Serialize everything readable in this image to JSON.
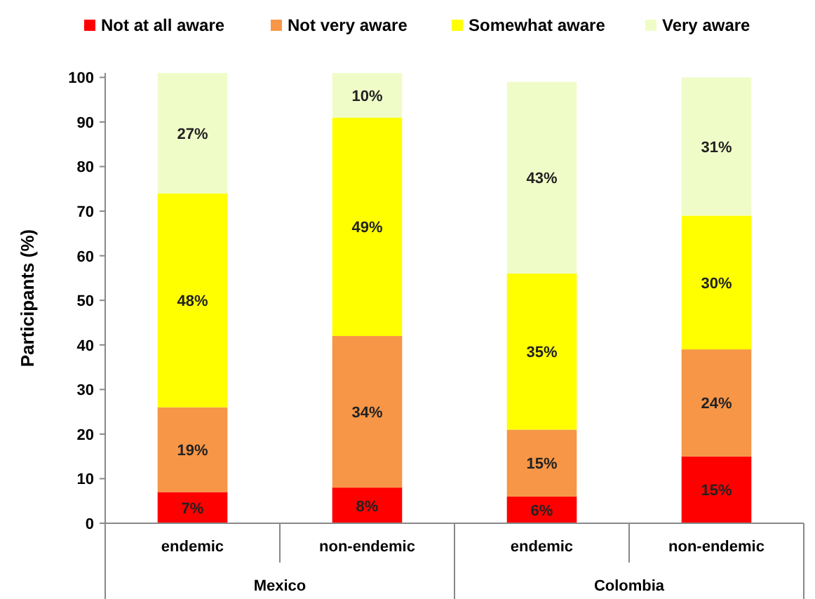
{
  "chart_data": {
    "type": "bar",
    "stacked": true,
    "ylabel": "Participants (%)",
    "categories": [
      "endemic",
      "non-endemic",
      "endemic",
      "non-endemic"
    ],
    "annotations": [
      "Mexico",
      "Colombia"
    ],
    "series": [
      {
        "name": "Not at all aware",
        "color": "#ff0000",
        "values": [
          7,
          8,
          6,
          15
        ],
        "value_labels": [
          "7%",
          "8%",
          "6%",
          "15%"
        ]
      },
      {
        "name": "Not very aware",
        "color": "#f79646",
        "values": [
          19,
          34,
          15,
          24
        ],
        "value_labels": [
          "19%",
          "34%",
          "15%",
          "24%"
        ]
      },
      {
        "name": "Somewhat aware",
        "color": "#ffff00",
        "values": [
          48,
          49,
          35,
          30
        ],
        "value_labels": [
          "48%",
          "49%",
          "35%",
          "30%"
        ]
      },
      {
        "name": "Very aware",
        "color": "#f0fcc8",
        "values": [
          27,
          10,
          43,
          31
        ],
        "value_labels": [
          "27%",
          "10%",
          "43%",
          "31%"
        ]
      }
    ],
    "ylim": [
      0,
      101
    ],
    "yticks": [
      0,
      10,
      20,
      30,
      40,
      50,
      60,
      70,
      80,
      90,
      100
    ],
    "legend": "top",
    "grid": false
  }
}
